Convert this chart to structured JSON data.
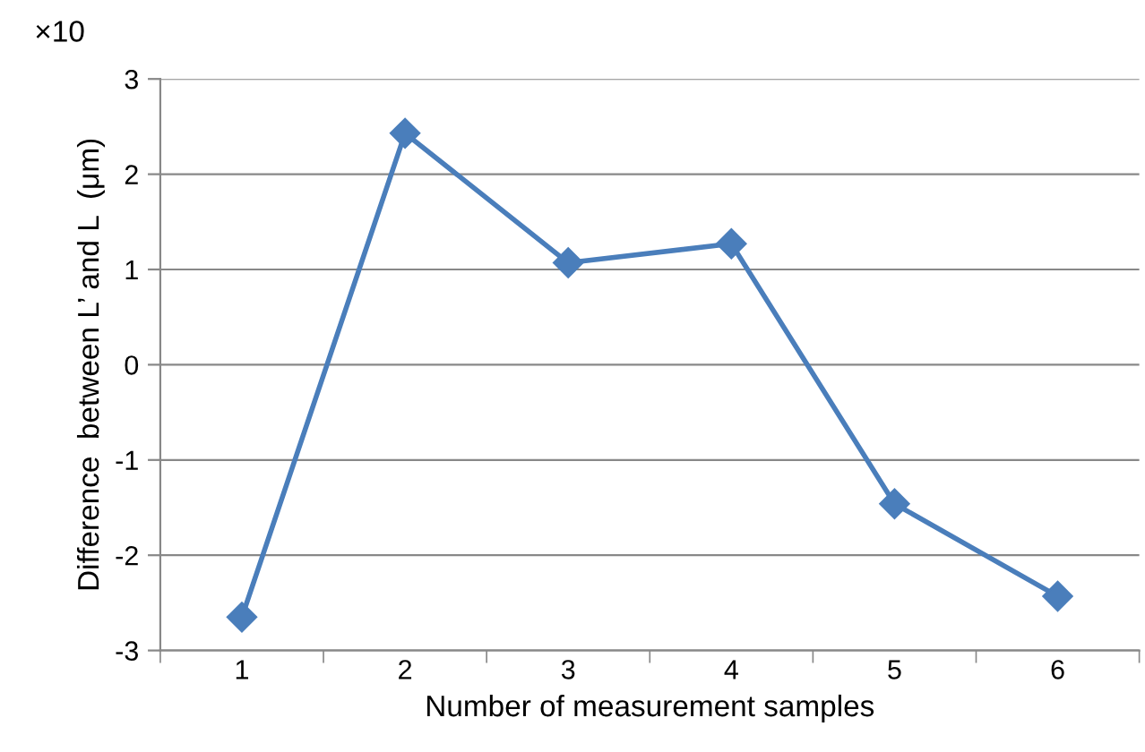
{
  "chart_data": {
    "type": "line",
    "xlabel": "Number of measurement samples",
    "ylabel": "Difference  between L’ and L  (μm)",
    "annotations": [
      "×10"
    ],
    "categories": [
      "1",
      "2",
      "3",
      "4",
      "5",
      "6"
    ],
    "series": [
      {
        "color": "#4a7ebb",
        "values": [
          -2.65,
          2.43,
          1.07,
          1.27,
          -1.46,
          -2.43
        ]
      }
    ],
    "ylim": [
      -3,
      3
    ],
    "yticks": [
      {
        "value": -3,
        "label": "-3"
      },
      {
        "value": -2,
        "label": "-2"
      },
      {
        "value": -1,
        "label": "-1"
      },
      0,
      1,
      2,
      3
    ],
    "grid": "y",
    "marker": "diamond",
    "line_style": "solid",
    "legend": false
  }
}
